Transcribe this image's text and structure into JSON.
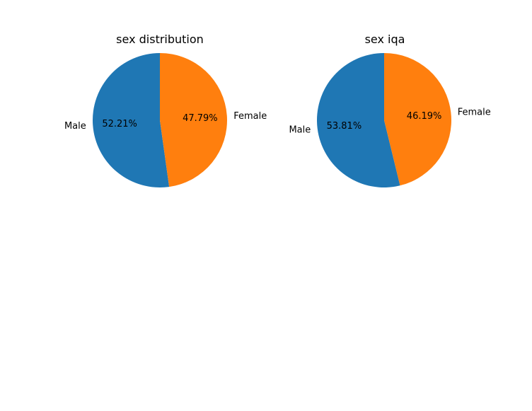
{
  "chart_data": [
    {
      "type": "pie",
      "title": "sex distribution",
      "categories": [
        "Male",
        "Female"
      ],
      "values": [
        52.21,
        47.79
      ],
      "labels": [
        "52.21%",
        "47.79%"
      ],
      "colors": [
        "#1f77b4",
        "#ff7f0e"
      ]
    },
    {
      "type": "pie",
      "title": "sex iqa",
      "categories": [
        "Male",
        "Female"
      ],
      "values": [
        53.81,
        46.19
      ],
      "labels": [
        "53.81%",
        "46.19%"
      ],
      "colors": [
        "#1f77b4",
        "#ff7f0e"
      ]
    }
  ]
}
